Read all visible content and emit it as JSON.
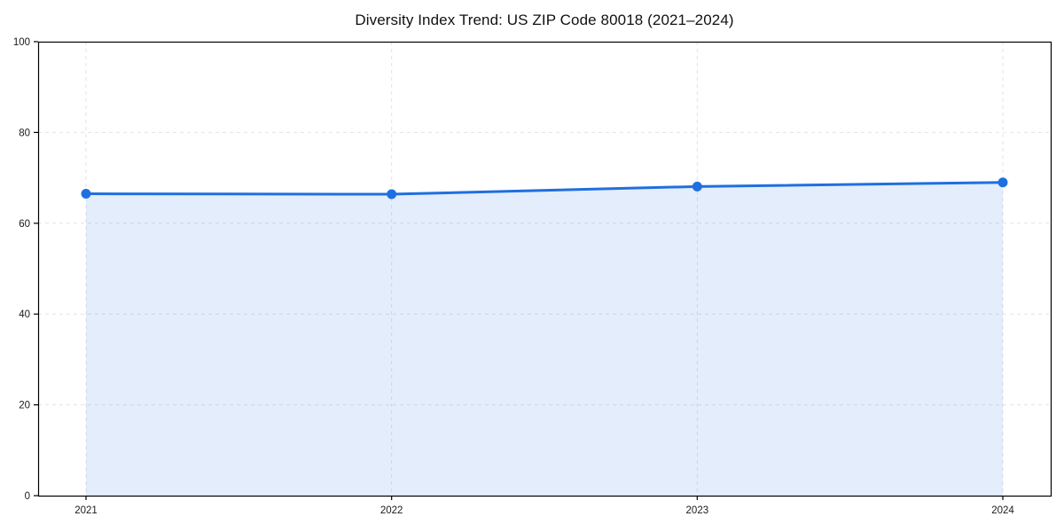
{
  "chart_data": {
    "type": "area",
    "title": "Diversity Index Trend: US ZIP Code 80018 (2021–2024)",
    "x": [
      "2021",
      "2022",
      "2023",
      "2024"
    ],
    "values": [
      66.5,
      66.4,
      68.1,
      69.0
    ],
    "xlabel": "",
    "ylabel": "",
    "ylim": [
      0,
      100
    ],
    "yticks": [
      0,
      20,
      40,
      60,
      80,
      100
    ],
    "grid": "dashed-both-axes",
    "legend": "none",
    "line_color": "#1f6fe0",
    "marker_color": "#1f6fe0",
    "fill_color": "rgba(31,111,224,0.12)",
    "grid_color": "#e3e3e3",
    "axis_color": "#000000",
    "tick_label_color": "#1a1a1a",
    "background": "#ffffff"
  }
}
